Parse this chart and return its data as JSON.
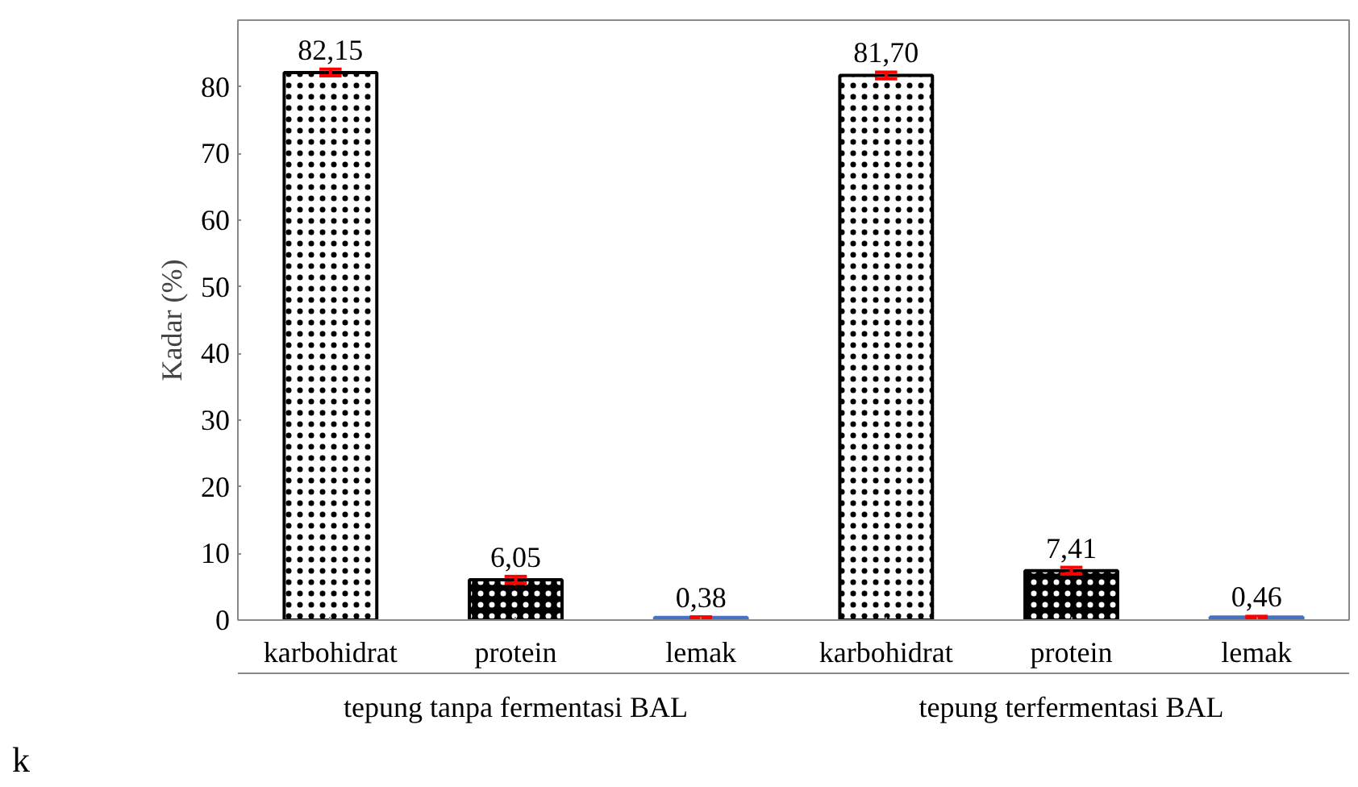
{
  "chart_data": {
    "type": "bar",
    "ylabel": "Kadar (%)",
    "categories": [
      "karbohidrat",
      "protein",
      "lemak",
      "karbohidrat",
      "protein",
      "lemak"
    ],
    "values": [
      82.15,
      6.05,
      0.38,
      81.7,
      7.41,
      0.46
    ],
    "colors": [
      "#ffffff",
      "#000000",
      "#4472c4",
      "#ffffff",
      "#000000",
      "#4472c4"
    ],
    "errors": [
      0.5,
      0.5,
      0.1,
      0.5,
      0.5,
      0.1
    ],
    "value_labels": [
      "82,15",
      "6,05",
      "0,38",
      "81,70",
      "7,41",
      "0,46"
    ],
    "ylim": [
      0,
      90
    ],
    "yticks": [
      0,
      10,
      20,
      30,
      40,
      50,
      60,
      70,
      80
    ],
    "grid": false,
    "annotations": [
      "tepung tanpa fermentasi BAL",
      "tepung terfermentasi BAL",
      "k"
    ]
  }
}
